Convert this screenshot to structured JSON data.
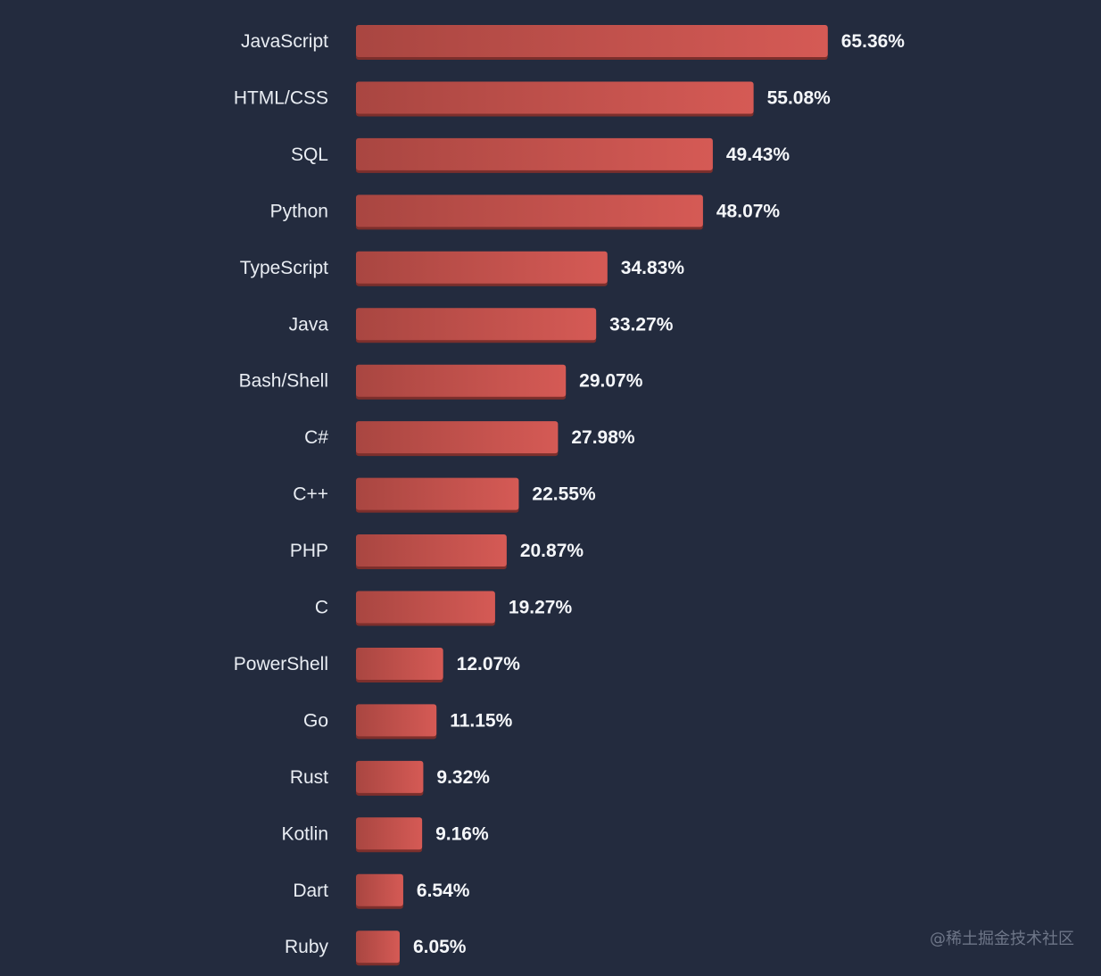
{
  "chart_data": {
    "type": "bar",
    "orientation": "horizontal",
    "categories": [
      "JavaScript",
      "HTML/CSS",
      "SQL",
      "Python",
      "TypeScript",
      "Java",
      "Bash/Shell",
      "C#",
      "C++",
      "PHP",
      "C",
      "PowerShell",
      "Go",
      "Rust",
      "Kotlin",
      "Dart",
      "Ruby"
    ],
    "values": [
      65.36,
      55.08,
      49.43,
      48.07,
      34.83,
      33.27,
      29.07,
      27.98,
      22.55,
      20.87,
      19.27,
      12.07,
      11.15,
      9.32,
      9.16,
      6.54,
      6.05
    ],
    "value_labels": [
      "65.36%",
      "55.08%",
      "49.43%",
      "48.07%",
      "34.83%",
      "33.27%",
      "29.07%",
      "27.98%",
      "22.55%",
      "20.87%",
      "19.27%",
      "12.07%",
      "11.15%",
      "9.32%",
      "9.16%",
      "6.54%",
      "6.05%"
    ],
    "title": "",
    "xlabel": "",
    "ylabel": "",
    "grid": false,
    "legend": "none",
    "colors": {
      "background": "#232b3e",
      "bar_dark": "#a94641",
      "bar_light": "#d55a55",
      "bar_shadow": "#7c2f2c",
      "text": "#e9edf3"
    }
  },
  "watermark": "@稀土掘金技术社区"
}
